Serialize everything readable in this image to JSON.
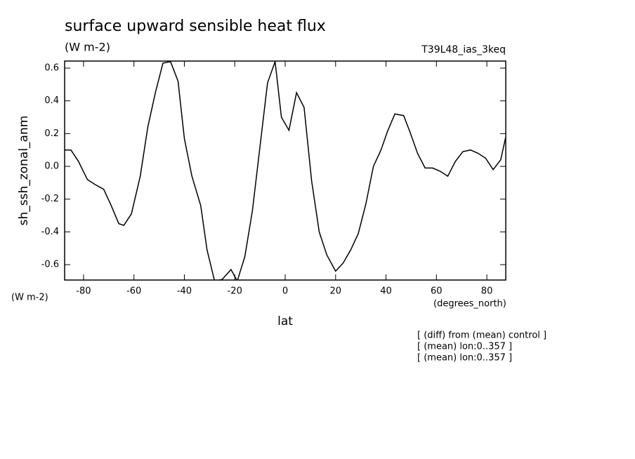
{
  "chart_data": {
    "type": "line",
    "title": "surface upward sensible heat flux",
    "subtitle": "(W m-2)",
    "run_label": "T39L48_ias_3keq",
    "y_label": "sh_ssh_zonal_anm",
    "y_units": "(W m-2)",
    "x_label": "lat",
    "x_units": "(degrees_north)",
    "notes": [
      "[ (diff) from (mean) control ]",
      "[ (mean) lon:0..357 ]",
      "[ (mean) lon:0..357 ]"
    ],
    "color": "#000000",
    "xlim": [
      -87.5,
      87.5
    ],
    "ylim": [
      -0.694,
      0.643
    ],
    "xticks": [
      -80,
      -60,
      -40,
      -20,
      0,
      20,
      40,
      60,
      80
    ],
    "yticks": [
      -0.6,
      -0.4,
      -0.2,
      {
        "value": 0,
        "label": "0.0"
      },
      0.2,
      0.4,
      0.6
    ],
    "x": [
      -87.5,
      -85,
      -82,
      -78.5,
      -75.5,
      -72,
      -69,
      -66,
      -64,
      -61,
      -57.5,
      -54.5,
      -51.5,
      -48.5,
      -45.5,
      -42.5,
      -40,
      -37,
      -33.5,
      -31,
      -28,
      -25,
      -21.5,
      -19,
      -16,
      -13,
      -10,
      -7,
      -4,
      -1.5,
      1.5,
      4.5,
      7.5,
      10.5,
      13.5,
      16.5,
      20,
      23,
      26,
      29,
      32,
      35,
      38,
      40.5,
      43.5,
      47,
      49.5,
      52.5,
      55.5,
      58.5,
      61.5,
      64.5,
      67.5,
      70.5,
      73.5,
      76.5,
      79.5,
      82.5,
      85.5,
      87.5
    ],
    "values": [
      0.1,
      0.1,
      0.03,
      -0.08,
      -0.11,
      -0.14,
      -0.24,
      -0.35,
      -0.36,
      -0.29,
      -0.06,
      0.24,
      0.45,
      0.63,
      0.64,
      0.52,
      0.17,
      -0.06,
      -0.24,
      -0.51,
      -0.7,
      -0.69,
      -0.63,
      -0.7,
      -0.55,
      -0.27,
      0.12,
      0.51,
      0.64,
      0.3,
      0.22,
      0.45,
      0.36,
      -0.09,
      -0.4,
      -0.54,
      -0.64,
      -0.59,
      -0.51,
      -0.41,
      -0.23,
      0.0,
      0.1,
      0.21,
      0.32,
      0.31,
      0.21,
      0.08,
      -0.01,
      -0.01,
      -0.03,
      -0.06,
      0.03,
      0.09,
      0.1,
      0.08,
      0.05,
      -0.02,
      0.04,
      0.18
    ]
  }
}
